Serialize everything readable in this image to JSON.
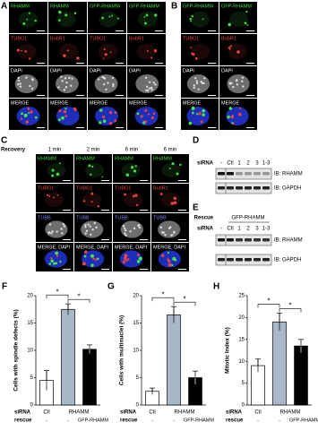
{
  "panels": {
    "A": {
      "label": "A",
      "rows": [
        [
          "RHAMM",
          "RHAMM",
          "GFP-RHAMM",
          "GFP-RHAMM"
        ],
        [
          "TUBG1",
          "BubR1",
          "TUBG1",
          "BubR1"
        ],
        [
          "DAPI",
          "DAPI",
          "DAPI",
          "DAPI"
        ],
        [
          "MERGE",
          "MERGE",
          "MERGE",
          "MERGE"
        ]
      ]
    },
    "B": {
      "label": "B",
      "rows": [
        [
          "GFP-RHAMM",
          "GFP-RHAMM"
        ],
        [
          "TUBG1",
          "BubR1"
        ],
        [
          "DAPI",
          "DAPI"
        ],
        [
          "MERGE",
          "MERGE"
        ]
      ]
    },
    "C": {
      "label": "C",
      "recovery": "Recovery",
      "times": [
        "1 min",
        "2 min",
        "6 min",
        "6 min"
      ],
      "rows": [
        [
          "RHAMM",
          "RHAMM",
          "RHAMM",
          "RHAMM"
        ],
        [
          "TUBG1",
          "TUBG1",
          "TUBG1",
          "BubR1"
        ],
        [
          "TUBB",
          "TUBB",
          "TUBB",
          "TUBB"
        ],
        [
          "MERGE, DAPI",
          "MERGE, DAPI",
          "MERGE, DAPI",
          "MERGE, DAPI"
        ]
      ]
    },
    "D": {
      "label": "D",
      "sirna": "siRNA",
      "lanes": [
        "-",
        "Ctl",
        "1",
        "2",
        "3",
        "1-3"
      ],
      "blots": [
        "IB: RHAMM",
        "IB: GAPDH"
      ]
    },
    "E": {
      "label": "E",
      "rescue": "Rescue",
      "construct": "GFP-RHAMM",
      "sirna": "siRNA",
      "lanes": [
        "-",
        "Ctl",
        "1",
        "2",
        "3",
        "1-3"
      ],
      "blots": [
        "IB: RHAMM",
        "IB: GAPDH"
      ]
    }
  },
  "chart_data": [
    {
      "type": "bar",
      "panel": "F",
      "ylabel": "Cells with spindle defects (%)",
      "siRNA_label": "siRNA",
      "rescue_label": "rescue",
      "siRNA": [
        "Ctl",
        "RHAMM",
        null
      ],
      "rescue": [
        "-",
        "-",
        "GFP-RHAMM"
      ],
      "values": [
        4.5,
        17.5,
        10.2
      ],
      "errors": [
        1.8,
        1.0,
        0.8
      ],
      "colors": [
        "#ffffff",
        "#a9b8c8",
        "#000000"
      ],
      "ylim": [
        0,
        20
      ],
      "yticks": [
        0,
        5,
        10,
        15,
        20
      ],
      "significance": [
        "*",
        "*"
      ]
    },
    {
      "type": "bar",
      "panel": "G",
      "ylabel": "Cells with multinuclei (%)",
      "siRNA_label": "siRNA",
      "rescue_label": "rescue",
      "siRNA": [
        "Ctl",
        "RHAMM",
        null
      ],
      "rescue": [
        "-",
        "-",
        "GFP-RHAMM"
      ],
      "values": [
        2.5,
        16.5,
        5.0
      ],
      "errors": [
        0.6,
        1.5,
        1.2
      ],
      "colors": [
        "#ffffff",
        "#a9b8c8",
        "#000000"
      ],
      "ylim": [
        0,
        20
      ],
      "yticks": [
        0,
        5,
        10,
        15,
        20
      ],
      "significance": [
        "*",
        "*"
      ]
    },
    {
      "type": "bar",
      "panel": "H",
      "ylabel": "Mitotic Index (%)",
      "siRNA_label": "siRNA",
      "rescue_label": "rescue",
      "siRNA": [
        "Ctl",
        "RHAMM",
        null
      ],
      "rescue": [
        "-",
        "-",
        "GFP-RHAMM"
      ],
      "values": [
        9.0,
        19.0,
        13.5
      ],
      "errors": [
        1.5,
        2.0,
        1.5
      ],
      "colors": [
        "#ffffff",
        "#a9b8c8",
        "#000000"
      ],
      "ylim": [
        0,
        25
      ],
      "yticks": [
        0,
        5,
        10,
        15,
        20,
        25
      ],
      "significance": [
        "*",
        "*"
      ]
    }
  ]
}
